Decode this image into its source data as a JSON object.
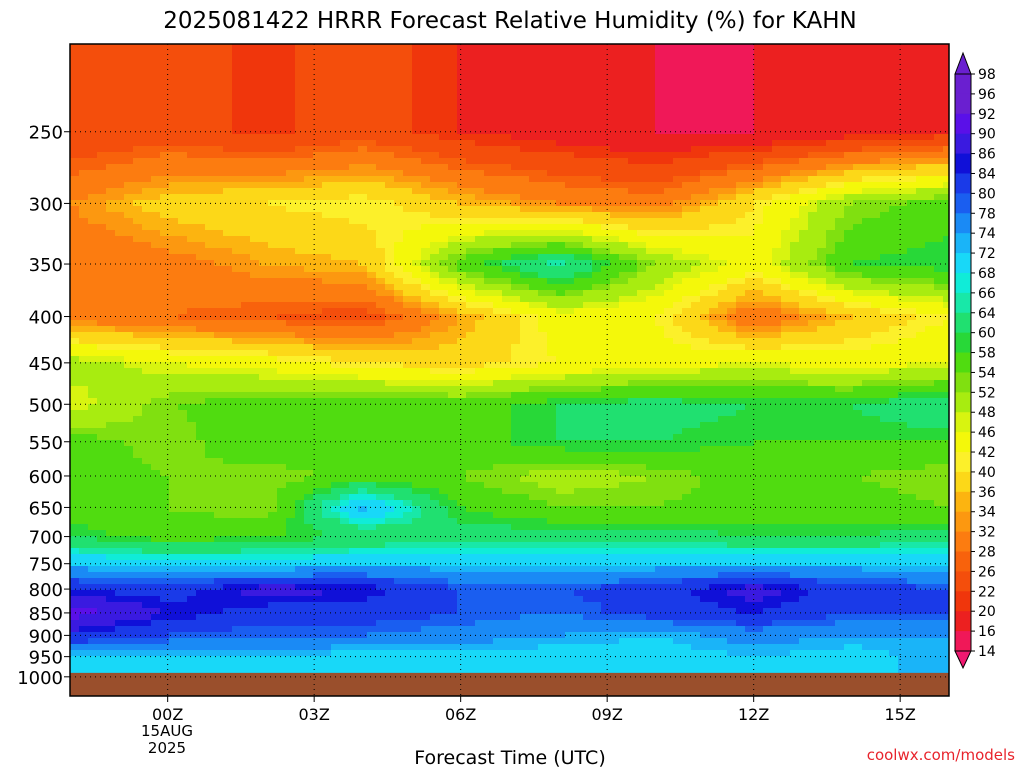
{
  "chart_data": {
    "type": "heatmap",
    "title": "2025081422 HRRR Forecast Relative Humidity (%) for KAHN",
    "xlabel": "Forecast Time (UTC)",
    "ylabel": "",
    "credit": "coolwx.com/models",
    "x_ticks": [
      "00Z",
      "03Z",
      "06Z",
      "09Z",
      "12Z",
      "15Z"
    ],
    "x_tick_hours": [
      0,
      3,
      6,
      9,
      12,
      15
    ],
    "x_date_line1": "15AUG",
    "x_date_line2": "2025",
    "xlim_hours": [
      -2,
      16
    ],
    "y_ticks": [
      250,
      300,
      350,
      400,
      450,
      500,
      550,
      600,
      650,
      700,
      750,
      800,
      850,
      900,
      950,
      1000
    ],
    "y_scale": "log-pressure (reversed)",
    "ylim_hpa": [
      1050,
      200
    ],
    "grid": true,
    "colorbar": {
      "labels": [
        "98",
        "96",
        "92",
        "90",
        "86",
        "84",
        "80",
        "78",
        "74",
        "72",
        "68",
        "66",
        "64",
        "60",
        "58",
        "54",
        "52",
        "48",
        "46",
        "42",
        "40",
        "36",
        "34",
        "32",
        "28",
        "26",
        "22",
        "20",
        "16",
        "14"
      ],
      "colors": [
        "#6a1fd0",
        "#6a1fd0",
        "#5a10e8",
        "#3a1ae0",
        "#1010d8",
        "#1a3ae8",
        "#1a5ef0",
        "#1a8af5",
        "#1ab4f8",
        "#18d8f8",
        "#10ecd8",
        "#18e8a8",
        "#20e070",
        "#28d838",
        "#50dc10",
        "#80e010",
        "#a8ec10",
        "#d8f410",
        "#f4f80a",
        "#fcf02a",
        "#fcd818",
        "#fcb410",
        "#fc9810",
        "#fc7c10",
        "#f8620c",
        "#f44e0c",
        "#f0360c",
        "#ec2020",
        "#f01858",
        "#f01870"
      ],
      "extends": "both"
    },
    "rh_levels": [
      250,
      300,
      350,
      400,
      450,
      500,
      550,
      600,
      650,
      700,
      750,
      800,
      850,
      900,
      950
    ],
    "rh_hours": [
      -2,
      0,
      2,
      4,
      6,
      8,
      10,
      12,
      14,
      16
    ],
    "rh_values": [
      [
        22,
        24,
        21,
        24,
        20,
        18,
        16,
        16,
        18,
        20
      ],
      [
        32,
        38,
        40,
        42,
        36,
        32,
        30,
        40,
        52,
        56
      ],
      [
        28,
        30,
        34,
        36,
        56,
        66,
        52,
        44,
        58,
        60
      ],
      [
        30,
        28,
        26,
        24,
        34,
        44,
        42,
        28,
        36,
        42
      ],
      [
        50,
        46,
        44,
        40,
        38,
        42,
        44,
        46,
        44,
        46
      ],
      [
        46,
        54,
        56,
        58,
        56,
        60,
        62,
        60,
        60,
        64
      ],
      [
        56,
        52,
        58,
        54,
        56,
        60,
        60,
        58,
        58,
        58
      ],
      [
        58,
        54,
        52,
        56,
        54,
        50,
        52,
        56,
        54,
        52
      ],
      [
        56,
        54,
        52,
        74,
        58,
        54,
        54,
        56,
        56,
        54
      ],
      [
        60,
        56,
        58,
        60,
        62,
        62,
        62,
        60,
        60,
        62
      ],
      [
        72,
        70,
        70,
        72,
        72,
        70,
        72,
        72,
        72,
        72
      ],
      [
        84,
        82,
        88,
        86,
        80,
        80,
        82,
        88,
        82,
        80
      ],
      [
        92,
        86,
        82,
        82,
        80,
        78,
        82,
        84,
        80,
        80
      ],
      [
        84,
        80,
        78,
        78,
        76,
        74,
        72,
        76,
        74,
        74
      ],
      [
        70,
        72,
        72,
        70,
        70,
        70,
        70,
        72,
        70,
        74
      ]
    ],
    "ground_level_hpa": 990,
    "ground_color": "#9a4f2c"
  }
}
